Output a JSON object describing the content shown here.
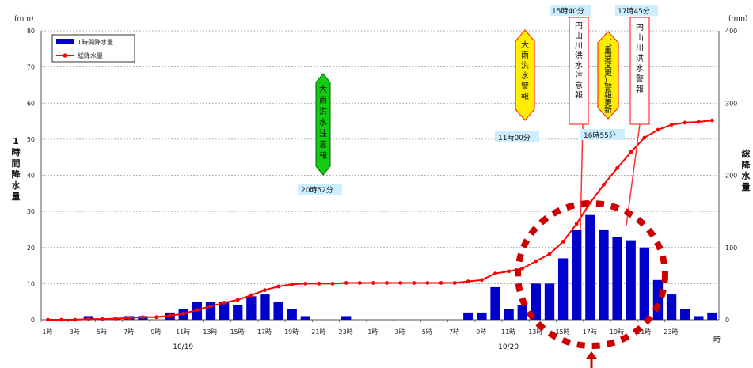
{
  "chart_data": {
    "type": "bar",
    "y_unit_left": "(mm)",
    "y_unit_right": "(mm)",
    "ylabel_left": "1時間降水量",
    "ylabel_right": "総降水量",
    "x_unit": "時",
    "ylim_left": [
      0,
      80
    ],
    "ylim_right": [
      0,
      400
    ],
    "yticks_left": [
      "0",
      "10",
      "20",
      "30",
      "40",
      "50",
      "60",
      "70",
      "80"
    ],
    "yticks_right": [
      "0",
      "100",
      "200",
      "300",
      "400"
    ],
    "x_tick_labels": [
      "1時",
      "3時",
      "5時",
      "7時",
      "9時",
      "11時",
      "13時",
      "15時",
      "17時",
      "19時",
      "21時",
      "23時",
      "1時",
      "3時",
      "5時",
      "7時",
      "9時",
      "11時",
      "13時",
      "15時",
      "17時",
      "19時",
      "21時",
      "23時"
    ],
    "date_labels": [
      {
        "label": "10/19",
        "hour_index": 10
      },
      {
        "label": "10/20",
        "hour_index": 34
      }
    ],
    "legend": {
      "position": "top-left"
    },
    "series": [
      {
        "name": "1時間降水量",
        "type": "bar",
        "color": "#0000cc",
        "axis": "left",
        "values": [
          0,
          0,
          0,
          1,
          0,
          0.5,
          1,
          1,
          0,
          2,
          3,
          5,
          5,
          5,
          4,
          6.5,
          7,
          5,
          3,
          1,
          0,
          0,
          1,
          0,
          0,
          0,
          0,
          0,
          0,
          0,
          0,
          2,
          2,
          9,
          3,
          4,
          10,
          10,
          17,
          25,
          29,
          25,
          23,
          22,
          20,
          11,
          7,
          3,
          1,
          2
        ]
      },
      {
        "name": "総降水量",
        "type": "line",
        "color": "#ff0000",
        "axis": "right",
        "values": [
          0,
          0,
          0,
          1,
          1,
          1.5,
          2.5,
          3.5,
          3.5,
          5.5,
          8.5,
          13.5,
          18.5,
          23.5,
          27.5,
          34,
          41,
          46,
          49,
          50,
          50,
          50,
          51,
          51,
          51,
          51,
          51,
          51,
          51,
          51,
          51,
          53,
          55,
          64,
          67,
          71,
          81,
          91,
          108,
          133,
          162,
          187,
          210,
          232,
          252,
          263,
          270,
          273,
          274,
          276
        ]
      }
    ],
    "annotations": [
      {
        "text": "大雨洪水注意報",
        "time": "20時52分",
        "color": "#00cc00"
      },
      {
        "text": "大雨洪水警報",
        "time": "11時00分",
        "color": "#ffee00"
      },
      {
        "text": "円山川洪水注意報",
        "time": "15時40分",
        "color": "#ffffff"
      },
      {
        "text": "（重要変更）警報更新",
        "time": "16時55分",
        "color": "#ffee00"
      },
      {
        "text": "円山川洪水警報",
        "time": "17時45分",
        "color": "#ffffff"
      }
    ]
  }
}
